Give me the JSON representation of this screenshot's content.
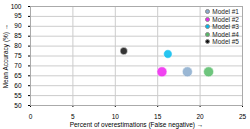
{
  "chart_data": {
    "type": "scatter",
    "title": "",
    "xlabel": "Percent of overestimations (False negative)",
    "ylabel": "Mean Accuracy (%)",
    "xlim": [
      0,
      25
    ],
    "ylim": [
      50,
      100
    ],
    "xticks": [
      0,
      5,
      10,
      15,
      20,
      25
    ],
    "yticks": [
      50,
      55,
      60,
      65,
      70,
      75,
      80,
      85,
      90,
      95,
      100
    ],
    "grid": true,
    "legend": "upper right",
    "series": [
      {
        "name": "Model #1",
        "color": "#88AACC",
        "x": [
          18.5
        ],
        "values": [
          67.0
        ],
        "sizes": [
          55
        ]
      },
      {
        "name": "Model #2",
        "color": "#EE22EE",
        "x": [
          15.5
        ],
        "values": [
          67.0
        ],
        "sizes": [
          55
        ]
      },
      {
        "name": "Model #3",
        "color": "#00BBEE",
        "x": [
          16.2
        ],
        "values": [
          76.0
        ],
        "sizes": [
          40
        ]
      },
      {
        "name": "Model #4",
        "color": "#55BB66",
        "x": [
          21.0
        ],
        "values": [
          67.0
        ],
        "sizes": [
          55
        ]
      },
      {
        "name": "Model #5",
        "color": "#111111",
        "x": [
          11.0
        ],
        "values": [
          77.5
        ],
        "sizes": [
          30
        ]
      }
    ]
  }
}
